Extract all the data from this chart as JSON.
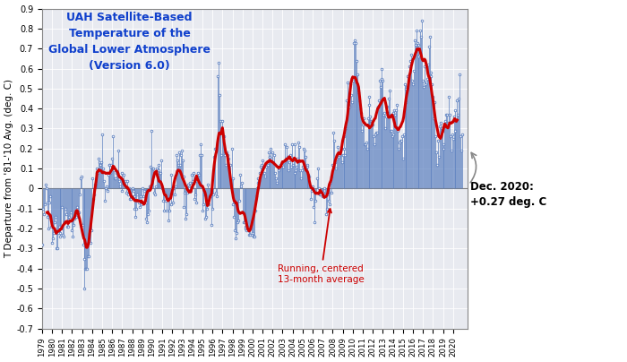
{
  "title": "UAH Satellite-Based\nTemperature of the\nGlobal Lower Atmosphere\n(Version 6.0)",
  "ylabel": "T Departure from '81-'10 Avg. (deg. C)",
  "ylim": [
    -0.7,
    0.9
  ],
  "yticks": [
    -0.7,
    -0.6,
    -0.5,
    -0.4,
    -0.3,
    -0.2,
    -0.1,
    0.0,
    0.1,
    0.2,
    0.3,
    0.4,
    0.5,
    0.6,
    0.7,
    0.8,
    0.9
  ],
  "annotation_label": "Running, centered\n13-month average",
  "dec2020_label": "Dec. 2020:\n+0.27 deg. C",
  "line_color": "#5B7FBF",
  "smooth_color": "#CC0000",
  "bg_color": "#E8EAF0",
  "monthly_data": [
    -0.28,
    -0.1,
    -0.13,
    -0.08,
    0.02,
    -0.0,
    -0.07,
    -0.14,
    -0.2,
    -0.07,
    -0.04,
    -0.19,
    -0.27,
    -0.25,
    -0.22,
    -0.17,
    -0.14,
    -0.3,
    -0.3,
    -0.22,
    -0.19,
    -0.24,
    -0.22,
    -0.2,
    -0.09,
    -0.23,
    -0.24,
    -0.17,
    -0.1,
    -0.13,
    -0.19,
    -0.19,
    -0.14,
    -0.15,
    -0.12,
    -0.21,
    -0.16,
    -0.24,
    -0.18,
    -0.15,
    -0.12,
    -0.14,
    -0.09,
    -0.12,
    -0.12,
    -0.03,
    0.05,
    0.06,
    -0.18,
    -0.28,
    -0.5,
    -0.35,
    -0.4,
    -0.4,
    -0.4,
    -0.34,
    -0.34,
    -0.21,
    -0.27,
    -0.21,
    0.05,
    -0.05,
    -0.03,
    0.02,
    0.03,
    0.1,
    0.08,
    0.08,
    0.15,
    0.13,
    0.12,
    0.13,
    0.27,
    0.1,
    0.04,
    -0.06,
    0.0,
    0.01,
    -0.01,
    0.07,
    0.12,
    0.12,
    0.08,
    0.12,
    0.15,
    0.26,
    0.09,
    0.05,
    0.05,
    0.08,
    0.08,
    0.19,
    0.04,
    0.01,
    0.05,
    -0.01,
    0.08,
    0.03,
    0.07,
    0.02,
    0.04,
    -0.02,
    0.04,
    -0.03,
    0.0,
    -0.05,
    -0.05,
    -0.04,
    0.0,
    -0.01,
    -0.04,
    -0.1,
    -0.14,
    -0.1,
    -0.03,
    -0.06,
    -0.07,
    -0.09,
    -0.04,
    -0.08,
    0.0,
    -0.04,
    -0.01,
    -0.06,
    -0.15,
    -0.07,
    -0.17,
    -0.13,
    -0.11,
    0.01,
    0.11,
    0.29,
    0.1,
    0.1,
    -0.02,
    -0.03,
    0.01,
    0.1,
    0.07,
    0.12,
    0.09,
    0.08,
    0.08,
    0.14,
    0.0,
    -0.06,
    -0.11,
    -0.02,
    -0.06,
    -0.11,
    -0.05,
    -0.16,
    -0.11,
    -0.03,
    0.07,
    -0.08,
    0.0,
    -0.07,
    0.0,
    -0.03,
    0.01,
    0.17,
    0.14,
    0.12,
    0.18,
    0.12,
    0.17,
    0.19,
    0.14,
    0.06,
    -0.09,
    -0.02,
    -0.15,
    -0.13,
    -0.02,
    0.02,
    0.0,
    0.03,
    -0.01,
    0.07,
    0.04,
    0.08,
    -0.05,
    -0.03,
    -0.07,
    0.04,
    0.04,
    0.08,
    0.07,
    0.17,
    0.22,
    0.17,
    -0.11,
    -0.08,
    -0.03,
    -0.15,
    -0.14,
    -0.1,
    0.02,
    -0.08,
    -0.08,
    -0.04,
    -0.04,
    -0.18,
    -0.1,
    -0.03,
    0.16,
    0.2,
    -0.02,
    -0.04,
    0.56,
    0.63,
    0.47,
    0.34,
    0.28,
    0.17,
    0.34,
    0.26,
    0.26,
    0.17,
    0.12,
    0.18,
    0.17,
    0.15,
    0.1,
    0.12,
    0.02,
    0.2,
    0.05,
    -0.08,
    -0.14,
    -0.21,
    -0.25,
    -0.22,
    -0.17,
    -0.16,
    -0.06,
    0.07,
    0.01,
    0.03,
    -0.12,
    -0.17,
    -0.17,
    -0.2,
    -0.19,
    -0.21,
    -0.19,
    -0.21,
    -0.23,
    -0.23,
    -0.2,
    -0.23,
    -0.22,
    -0.24,
    -0.24,
    -0.11,
    -0.04,
    0.0,
    0.05,
    0.03,
    0.04,
    0.08,
    0.11,
    0.12,
    0.14,
    0.08,
    0.08,
    0.06,
    0.11,
    0.12,
    0.12,
    0.18,
    0.16,
    0.16,
    0.2,
    0.15,
    0.18,
    0.13,
    0.17,
    0.08,
    0.05,
    0.03,
    0.11,
    0.09,
    0.1,
    0.12,
    0.11,
    0.12,
    0.13,
    0.11,
    0.13,
    0.22,
    0.14,
    0.21,
    0.16,
    0.09,
    0.13,
    0.17,
    0.11,
    0.22,
    0.12,
    0.15,
    0.22,
    0.08,
    0.09,
    0.11,
    0.15,
    0.23,
    0.21,
    0.09,
    0.05,
    0.09,
    0.11,
    0.2,
    0.19,
    0.16,
    0.09,
    0.12,
    0.11,
    0.07,
    0.06,
    0.01,
    -0.05,
    -0.01,
    0.01,
    -0.09,
    -0.17,
    -0.06,
    -0.02,
    0.05,
    0.1,
    0.0,
    -0.02,
    -0.03,
    -0.03,
    -0.01,
    -0.04,
    -0.02,
    0.0,
    -0.03,
    -0.13,
    -0.1,
    -0.03,
    -0.06,
    -0.08,
    0.03,
    -0.02,
    0.06,
    0.12,
    0.28,
    0.24,
    0.13,
    0.1,
    0.15,
    0.21,
    0.16,
    0.17,
    0.19,
    0.2,
    0.13,
    0.17,
    0.2,
    0.26,
    0.17,
    0.3,
    0.44,
    0.53,
    0.42,
    0.41,
    0.52,
    0.47,
    0.43,
    0.54,
    0.73,
    0.74,
    0.73,
    0.64,
    0.53,
    0.57,
    0.48,
    0.44,
    0.4,
    0.38,
    0.29,
    0.32,
    0.35,
    0.22,
    0.22,
    0.23,
    0.2,
    0.35,
    0.42,
    0.46,
    0.36,
    0.34,
    0.34,
    0.32,
    0.26,
    0.22,
    0.27,
    0.28,
    0.28,
    0.41,
    0.44,
    0.54,
    0.51,
    0.6,
    0.55,
    0.54,
    0.37,
    0.38,
    0.3,
    0.36,
    0.41,
    0.38,
    0.45,
    0.49,
    0.29,
    0.29,
    0.26,
    0.27,
    0.38,
    0.39,
    0.37,
    0.39,
    0.42,
    0.29,
    0.2,
    0.23,
    0.24,
    0.24,
    0.26,
    0.15,
    0.27,
    0.52,
    0.43,
    0.5,
    0.51,
    0.56,
    0.54,
    0.61,
    0.64,
    0.67,
    0.54,
    0.52,
    0.59,
    0.74,
    0.72,
    0.79,
    0.73,
    0.72,
    0.66,
    0.67,
    0.79,
    0.76,
    0.84,
    0.54,
    0.51,
    0.61,
    0.52,
    0.53,
    0.55,
    0.62,
    0.71,
    0.76,
    0.58,
    0.56,
    0.52,
    0.46,
    0.35,
    0.43,
    0.26,
    0.18,
    0.12,
    0.24,
    0.16,
    0.31,
    0.33,
    0.3,
    0.29,
    0.22,
    0.2,
    0.31,
    0.34,
    0.37,
    0.37,
    0.33,
    0.46,
    0.37,
    0.26,
    0.19,
    0.27,
    0.25,
    0.36,
    0.39,
    0.29,
    0.34,
    0.44,
    0.37,
    0.45,
    0.57,
    0.26,
    0.19,
    0.27
  ]
}
